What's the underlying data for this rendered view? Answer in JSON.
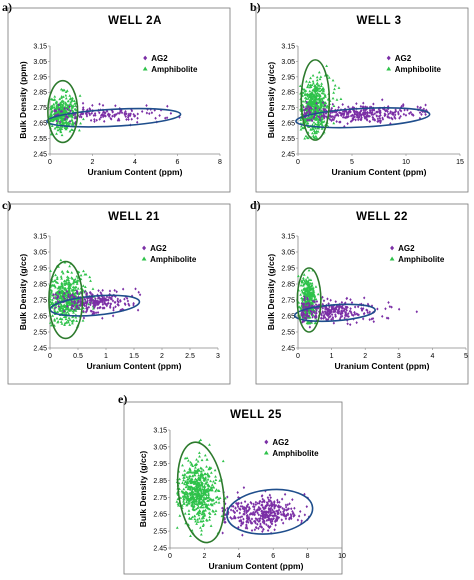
{
  "chart_data": [
    {
      "type": "scatter",
      "panel_label": "a)",
      "title": "WELL 2A",
      "xlabel": "Uranium Content (ppm)",
      "ylabel": "Bulk Density (ppm)",
      "xlim": [
        0,
        8
      ],
      "ylim": [
        2.45,
        3.15
      ],
      "xticks": [
        "0",
        "2",
        "4",
        "6",
        "8"
      ],
      "yticks": [
        "2.45",
        "2.55",
        "2.65",
        "2.75",
        "2.85",
        "2.95",
        "3.05",
        "3.15"
      ],
      "legend_position": "top-right",
      "series": [
        {
          "name": "AG2",
          "color": "#7b2fa6",
          "marker": "diamond",
          "cluster": {
            "x_mean": 2.5,
            "x_sd": 1.4,
            "y_mean": 2.71,
            "y_sd": 0.025,
            "x_min": 0.2,
            "x_max": 6.2,
            "y_min": 2.62,
            "y_max": 2.8,
            "n": 160
          }
        },
        {
          "name": "Amphibolite",
          "color": "#2ec24a",
          "marker": "triangle",
          "cluster": {
            "x_mean": 0.6,
            "x_sd": 0.35,
            "y_mean": 2.72,
            "y_sd": 0.06,
            "x_min": 0.0,
            "x_max": 2.2,
            "y_min": 2.57,
            "y_max": 2.96,
            "n": 320
          }
        }
      ],
      "ellipses": [
        {
          "color": "#1f4e8c",
          "cx": 3.0,
          "cy": 2.685,
          "rx": 3.15,
          "ry": 0.055,
          "rotation_deg": -3
        },
        {
          "color": "#2d7a2d",
          "cx": 0.6,
          "cy": 2.725,
          "rx": 0.7,
          "ry": 0.2,
          "rotation_deg": 0
        }
      ]
    },
    {
      "type": "scatter",
      "panel_label": "b)",
      "title": "WELL 3",
      "xlabel": "Uranium Content (ppm)",
      "ylabel": "Bulk Density (g/cc)",
      "xlim": [
        0,
        15
      ],
      "ylim": [
        2.45,
        3.15
      ],
      "xticks": [
        "0",
        "5",
        "10",
        "15"
      ],
      "yticks": [
        "2.45",
        "2.55",
        "2.65",
        "2.75",
        "2.85",
        "2.95",
        "3.05",
        "3.15"
      ],
      "legend_position": "top-right",
      "series": [
        {
          "name": "AG2",
          "color": "#7b2fa6",
          "marker": "diamond",
          "cluster": {
            "x_mean": 5.5,
            "x_sd": 2.8,
            "y_mean": 2.71,
            "y_sd": 0.03,
            "x_min": 0.5,
            "x_max": 12.0,
            "y_min": 2.6,
            "y_max": 2.82,
            "n": 340
          }
        },
        {
          "name": "Amphibolite",
          "color": "#2ec24a",
          "marker": "triangle",
          "cluster": {
            "x_mean": 1.5,
            "x_sd": 0.7,
            "y_mean": 2.75,
            "y_sd": 0.09,
            "x_min": 0.2,
            "x_max": 4.0,
            "y_min": 2.55,
            "y_max": 3.08,
            "n": 520
          }
        }
      ],
      "ellipses": [
        {
          "color": "#1f4e8c",
          "cx": 6.0,
          "cy": 2.685,
          "rx": 6.2,
          "ry": 0.06,
          "rotation_deg": -3
        },
        {
          "color": "#2d7a2d",
          "cx": 1.6,
          "cy": 2.8,
          "rx": 1.3,
          "ry": 0.26,
          "rotation_deg": 0
        }
      ]
    },
    {
      "type": "scatter",
      "panel_label": "c)",
      "title": "WELL 21",
      "xlabel": "Uranium Content (ppm)",
      "ylabel": "Bulk Density (g/cc)",
      "xlim": [
        0,
        3
      ],
      "ylim": [
        2.45,
        3.15
      ],
      "xticks": [
        "0",
        "0.5",
        "1",
        "1.5",
        "2",
        "2.5",
        "3"
      ],
      "yticks": [
        "2.45",
        "2.55",
        "2.65",
        "2.75",
        "2.85",
        "2.95",
        "3.05",
        "3.15"
      ],
      "legend_position": "top-right",
      "series": [
        {
          "name": "AG2",
          "color": "#7b2fa6",
          "marker": "diamond",
          "cluster": {
            "x_mean": 0.75,
            "x_sd": 0.35,
            "y_mean": 2.74,
            "y_sd": 0.035,
            "x_min": 0.05,
            "x_max": 2.05,
            "y_min": 2.63,
            "y_max": 2.82,
            "n": 260
          }
        },
        {
          "name": "Amphibolite",
          "color": "#2ec24a",
          "marker": "triangle",
          "cluster": {
            "x_mean": 0.3,
            "x_sd": 0.17,
            "y_mean": 2.76,
            "y_sd": 0.08,
            "x_min": 0.0,
            "x_max": 0.95,
            "y_min": 2.55,
            "y_max": 3.0,
            "n": 480
          }
        }
      ],
      "ellipses": [
        {
          "color": "#1f4e8c",
          "cx": 0.8,
          "cy": 2.715,
          "rx": 0.8,
          "ry": 0.06,
          "rotation_deg": -5
        },
        {
          "color": "#2d7a2d",
          "cx": 0.28,
          "cy": 2.75,
          "rx": 0.3,
          "ry": 0.24,
          "rotation_deg": 0
        }
      ]
    },
    {
      "type": "scatter",
      "panel_label": "d)",
      "title": "WELL 22",
      "xlabel": "Uranium Content (ppm)",
      "ylabel": "Bulk Density (g/cc)",
      "xlim": [
        0,
        5
      ],
      "ylim": [
        2.45,
        3.15
      ],
      "xticks": [
        "0",
        "1",
        "2",
        "3",
        "4",
        "5"
      ],
      "yticks": [
        "2.45",
        "2.55",
        "2.65",
        "2.75",
        "2.85",
        "2.95",
        "3.05",
        "3.15"
      ],
      "legend_position": "top-right",
      "series": [
        {
          "name": "AG2",
          "color": "#7b2fa6",
          "marker": "diamond",
          "cluster": {
            "x_mean": 1.0,
            "x_sd": 0.65,
            "y_mean": 2.68,
            "y_sd": 0.035,
            "x_min": 0.1,
            "x_max": 4.2,
            "y_min": 2.5,
            "y_max": 2.78,
            "n": 300
          }
        },
        {
          "name": "Amphibolite",
          "color": "#2ec24a",
          "marker": "triangle",
          "cluster": {
            "x_mean": 0.3,
            "x_sd": 0.12,
            "y_mean": 2.75,
            "y_sd": 0.07,
            "x_min": 0.0,
            "x_max": 0.7,
            "y_min": 2.6,
            "y_max": 2.95,
            "n": 320
          }
        }
      ],
      "ellipses": [
        {
          "color": "#1f4e8c",
          "cx": 1.1,
          "cy": 2.67,
          "rx": 1.2,
          "ry": 0.05,
          "rotation_deg": -4
        },
        {
          "color": "#2d7a2d",
          "cx": 0.33,
          "cy": 2.75,
          "rx": 0.35,
          "ry": 0.2,
          "rotation_deg": 0
        }
      ]
    },
    {
      "type": "scatter",
      "panel_label": "e)",
      "title": "WELL 25",
      "xlabel": "Uranium Content (ppm)",
      "ylabel": "Bulk Density (g/cc)",
      "xlim": [
        0,
        10
      ],
      "ylim": [
        2.45,
        3.15
      ],
      "xticks": [
        "0",
        "2",
        "4",
        "6",
        "8",
        "10"
      ],
      "yticks": [
        "2.45",
        "2.55",
        "2.65",
        "2.75",
        "2.85",
        "2.95",
        "3.05",
        "3.15"
      ],
      "legend_position": "top-right",
      "series": [
        {
          "name": "AG2",
          "color": "#7b2fa6",
          "marker": "diamond",
          "cluster": {
            "x_mean": 5.3,
            "x_sd": 1.1,
            "y_mean": 2.66,
            "y_sd": 0.05,
            "x_min": 3.0,
            "x_max": 8.2,
            "y_min": 2.52,
            "y_max": 2.82,
            "n": 380
          }
        },
        {
          "name": "Amphibolite",
          "color": "#2ec24a",
          "marker": "triangle",
          "cluster": {
            "x_mean": 1.6,
            "x_sd": 0.55,
            "y_mean": 2.78,
            "y_sd": 0.09,
            "x_min": 0.4,
            "x_max": 3.3,
            "y_min": 2.52,
            "y_max": 3.1,
            "n": 560
          }
        }
      ],
      "ellipses": [
        {
          "color": "#1f4e8c",
          "cx": 5.8,
          "cy": 2.665,
          "rx": 2.5,
          "ry": 0.13,
          "rotation_deg": -6
        },
        {
          "color": "#2d7a2d",
          "cx": 1.8,
          "cy": 2.78,
          "rx": 1.3,
          "ry": 0.3,
          "rotation_deg": -8
        }
      ]
    }
  ]
}
